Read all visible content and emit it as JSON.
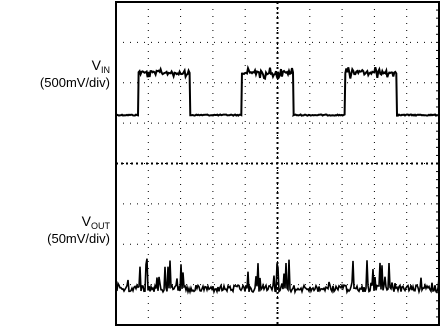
{
  "chart_data": [
    {
      "type": "line",
      "title": "",
      "xlabel": "",
      "grid": true,
      "grid_divisions": {
        "x": 10,
        "y": 8
      },
      "series": [
        {
          "name": "VIN",
          "scale": "500mV/div",
          "baseline_div": 2.8,
          "high_div": 3.7,
          "segments": [
            {
              "x_div": [
                0.0,
                0.7
              ],
              "level": "low"
            },
            {
              "x_div": [
                0.7,
                2.3
              ],
              "level": "high"
            },
            {
              "x_div": [
                2.3,
                3.9
              ],
              "level": "low"
            },
            {
              "x_div": [
                3.9,
                5.5
              ],
              "level": "high"
            },
            {
              "x_div": [
                5.5,
                7.1
              ],
              "level": "low"
            },
            {
              "x_div": [
                7.1,
                8.7
              ],
              "level": "high"
            },
            {
              "x_div": [
                8.7,
                10.0
              ],
              "level": "low"
            }
          ]
        },
        {
          "name": "VOUT",
          "scale": "50mV/div",
          "baseline_div": 7.0,
          "noise": "higher during VIN high intervals"
        }
      ]
    }
  ],
  "labels": {
    "vin_symbol": "V",
    "vin_sub": "IN",
    "vin_scale": "(500mV/div)",
    "vout_symbol": "V",
    "vout_sub": "OUT",
    "vout_scale": "(50mV/div)"
  }
}
